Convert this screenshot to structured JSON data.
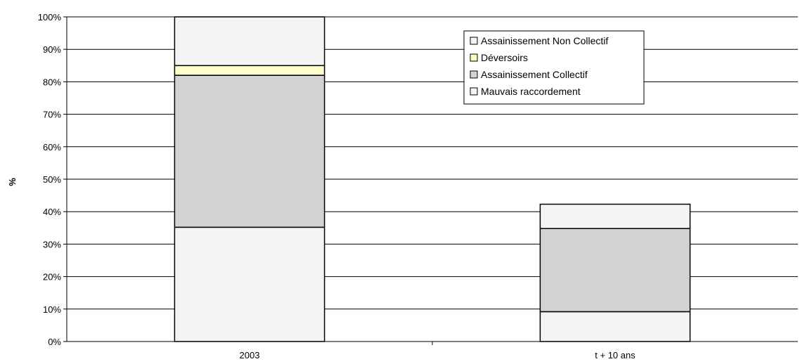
{
  "chart_data": {
    "type": "bar",
    "stacked": true,
    "title": "",
    "xlabel": "",
    "ylabel": "%",
    "ylim": [
      0,
      100
    ],
    "yticks": [
      "0%",
      "10%",
      "20%",
      "30%",
      "40%",
      "50%",
      "60%",
      "70%",
      "80%",
      "90%",
      "100%"
    ],
    "categories": [
      "2003",
      "t + 10 ans"
    ],
    "grid": true,
    "legend_position": "top-right",
    "series": [
      {
        "name": "Mauvais raccordement",
        "values": [
          35.2,
          9.2
        ],
        "color": "#f4f4f4"
      },
      {
        "name": "Assainissement Collectif",
        "values": [
          46.8,
          25.6
        ],
        "color": "#d3d3d3"
      },
      {
        "name": "Déversoirs",
        "values": [
          3.0,
          0.0
        ],
        "color": "#ffffcc"
      },
      {
        "name": "Assainissement Non Collectif",
        "values": [
          15.0,
          7.5
        ],
        "color": "#f4f4f4"
      }
    ],
    "legend_order": [
      "Assainissement Non Collectif",
      "Déversoirs",
      "Assainissement Collectif",
      "Mauvais raccordement"
    ]
  }
}
